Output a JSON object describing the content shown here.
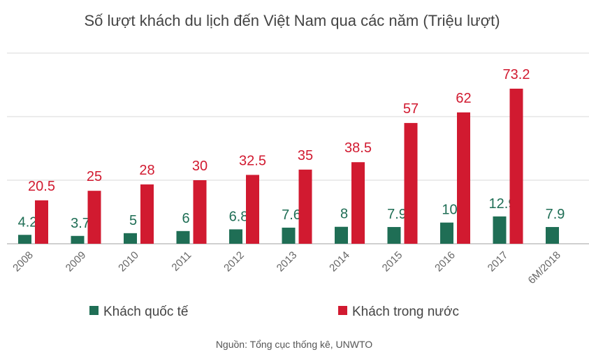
{
  "chart_data": {
    "type": "bar",
    "title": "Số lượt khách du lịch đến Việt Nam qua các năm (Triệu lượt)",
    "categories": [
      "2008",
      "2009",
      "2010",
      "2011",
      "2012",
      "2013",
      "2014",
      "2015",
      "2016",
      "2017",
      "6M/2018"
    ],
    "series": [
      {
        "name": "Khách quốc tế",
        "color": "#1f6e55",
        "values": [
          4.2,
          3.7,
          5,
          6,
          6.8,
          7.6,
          8,
          7.9,
          10,
          12.9,
          7.9
        ]
      },
      {
        "name": "Khách trong nước",
        "color": "#d11a30",
        "values": [
          20.5,
          25,
          28,
          30,
          32.5,
          35,
          38.5,
          57,
          62,
          73.2,
          null
        ]
      }
    ],
    "ylim": [
      0,
      90
    ],
    "gridlines": [
      0,
      30,
      60,
      90
    ],
    "grid": true,
    "legend": "bottom",
    "source": "Nguồn: Tổng cục thống kê, UNWTO"
  }
}
